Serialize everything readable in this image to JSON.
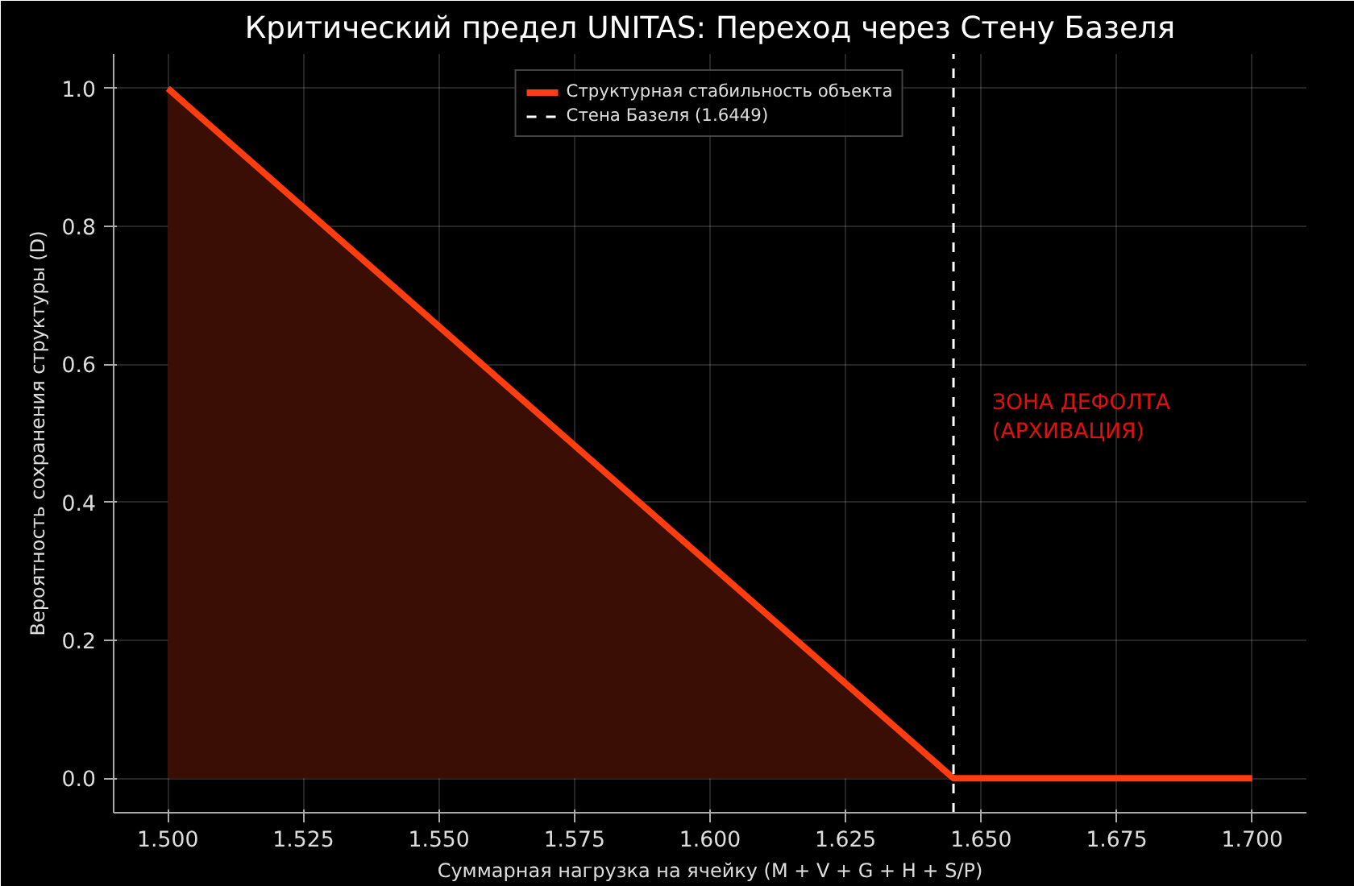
{
  "chart_data": {
    "type": "line",
    "title": "Критический предел UNITAS: Переход через Стену Базеля",
    "xlabel": "Суммарная нагрузка на ячейку (M + V + G + H + S/P)",
    "ylabel": "Вероятность сохранения структуры (D)",
    "series": [
      {
        "type": "area",
        "color": "#3a0d05",
        "x": [
          1.5,
          1.6449
        ],
        "values": [
          1.0,
          0.0
        ]
      },
      {
        "name": "Структурная стабильность объекта",
        "color": "#ff3d0f",
        "x": [
          1.5,
          1.6449,
          1.7
        ],
        "values": [
          1.0,
          0.0,
          0.0
        ]
      }
    ],
    "ref_lines": [
      {
        "axis": "x",
        "value": 1.6449,
        "label": "Стена Базеля (1.6449)",
        "color": "#ffffff",
        "line_style": "dashed"
      }
    ],
    "annotations": [
      "ЗОНА ДЕФОЛТА\n(АРХИВАЦИЯ)"
    ],
    "xlim": [
      1.49,
      1.71
    ],
    "ylim": [
      -0.05,
      1.05
    ],
    "xticks": [
      {
        "value": 1.5,
        "label": "1.500"
      },
      {
        "value": 1.525,
        "label": "1.525"
      },
      {
        "value": 1.55,
        "label": "1.550"
      },
      {
        "value": 1.575,
        "label": "1.575"
      },
      {
        "value": 1.6,
        "label": "1.600"
      },
      {
        "value": 1.625,
        "label": "1.625"
      },
      {
        "value": 1.65,
        "label": "1.650"
      },
      {
        "value": 1.675,
        "label": "1.675"
      },
      {
        "value": 1.7,
        "label": "1.700"
      }
    ],
    "yticks": [
      {
        "value": 0,
        "label": "0.0"
      },
      {
        "value": 0.2,
        "label": "0.2"
      },
      {
        "value": 0.4,
        "label": "0.4"
      },
      {
        "value": 0.6,
        "label": "0.6"
      },
      {
        "value": 0.8,
        "label": "0.8"
      },
      {
        "value": 1,
        "label": "1.0"
      }
    ],
    "grid": true,
    "legend": "top center"
  }
}
